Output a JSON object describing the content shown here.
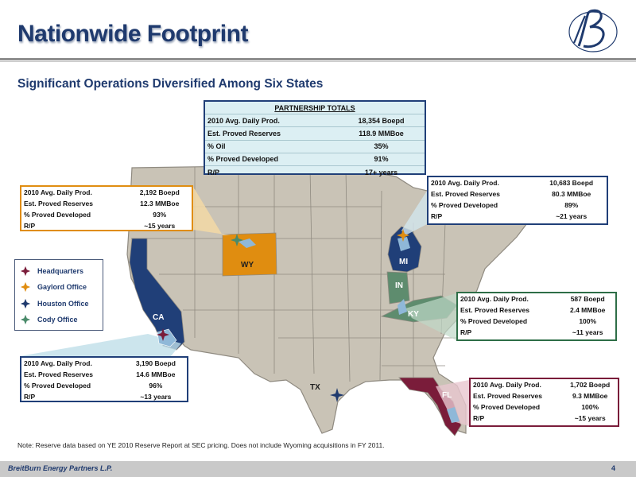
{
  "header": {
    "title": "Nationwide Footprint",
    "subtitle": "Significant Operations Diversified Among Six States"
  },
  "partnership_totals": {
    "heading": "PARTNERSHIP TOTALS",
    "rows": [
      {
        "label": "2010 Avg. Daily Prod.",
        "value": "18,354 Boepd"
      },
      {
        "label": "Est.  Proved Reserves",
        "value": "118.9 MMBoe"
      },
      {
        "label": "% Oil",
        "value": "35%"
      },
      {
        "label": "% Proved Developed",
        "value": "91%"
      },
      {
        "label": "R/P",
        "value": "17+ years"
      }
    ]
  },
  "state_boxes": {
    "wy": {
      "color": "#e08d10",
      "rows": [
        {
          "label": "2010 Avg. Daily Prod.",
          "value": "2,192 Boepd"
        },
        {
          "label": "Est. Proved Reserves",
          "value": "12.3 MMBoe"
        },
        {
          "label": "% Proved Developed",
          "value": "93%"
        },
        {
          "label": "R/P",
          "value": "~15 years"
        }
      ]
    },
    "mi": {
      "color": "#203f78",
      "rows": [
        {
          "label": "2010 Avg. Daily Prod.",
          "value": "10,683 Boepd"
        },
        {
          "label": "Est. Proved Reserves",
          "value": "80.3 MMBoe"
        },
        {
          "label": "% Proved Developed",
          "value": "89%"
        },
        {
          "label": "R/P",
          "value": "~21 years"
        }
      ]
    },
    "ky": {
      "color": "#2e6e47",
      "rows": [
        {
          "label": "2010 Avg. Daily Prod.",
          "value": "587 Boepd"
        },
        {
          "label": "Est. Proved Reserves",
          "value": "2.4 MMBoe"
        },
        {
          "label": "% Proved Developed",
          "value": "100%"
        },
        {
          "label": "R/P",
          "value": "~11 years"
        }
      ]
    },
    "ca": {
      "color": "#203f78",
      "rows": [
        {
          "label": "2010 Avg. Daily Prod.",
          "value": "3,190 Boepd"
        },
        {
          "label": "Est. Proved Reserves",
          "value": "14.6 MMBoe"
        },
        {
          "label": "% Proved Developed",
          "value": "96%"
        },
        {
          "label": "R/P",
          "value": "~13 years"
        }
      ]
    },
    "fl": {
      "color": "#7a1c3a",
      "rows": [
        {
          "label": "2010 Avg. Daily Prod.",
          "value": "1,702 Boepd"
        },
        {
          "label": "Est. Proved Reserves",
          "value": "9.3 MMBoe"
        },
        {
          "label": "% Proved Developed",
          "value": "100%"
        },
        {
          "label": "R/P",
          "value": "~15 years"
        }
      ]
    }
  },
  "map_labels": {
    "wy": "WY",
    "mi": "MI",
    "in": "IN",
    "ky": "KY",
    "ca": "CA",
    "tx": "TX",
    "fl": "FL"
  },
  "legend": {
    "items": [
      {
        "label": "Headquarters",
        "icon": "star-marker-icon",
        "color": "#7a1c3a"
      },
      {
        "label": "Gaylord Office",
        "icon": "star-marker-icon",
        "color": "#e08d10"
      },
      {
        "label": "Houston Office",
        "icon": "star-marker-icon",
        "color": "#1f3a6e"
      },
      {
        "label": "Cody Office",
        "icon": "star-marker-icon",
        "color": "#4a8a6a"
      }
    ]
  },
  "colors": {
    "wy": "#e08d10",
    "mi": "#203f78",
    "in": "#5e8c6e",
    "ky": "#5e8c6e",
    "ca": "#203f78",
    "fl": "#7a1c3a",
    "base_state": "#c9c3b6",
    "brand_blue": "#1f3a6e"
  },
  "note": "Note:  Reserve data based on YE 2010 Reserve Report at SEC pricing.  Does not include Wyoming acquisitions in FY 2011.",
  "footer": {
    "company": "BreitBurn Energy Partners L.P.",
    "page": "4"
  }
}
